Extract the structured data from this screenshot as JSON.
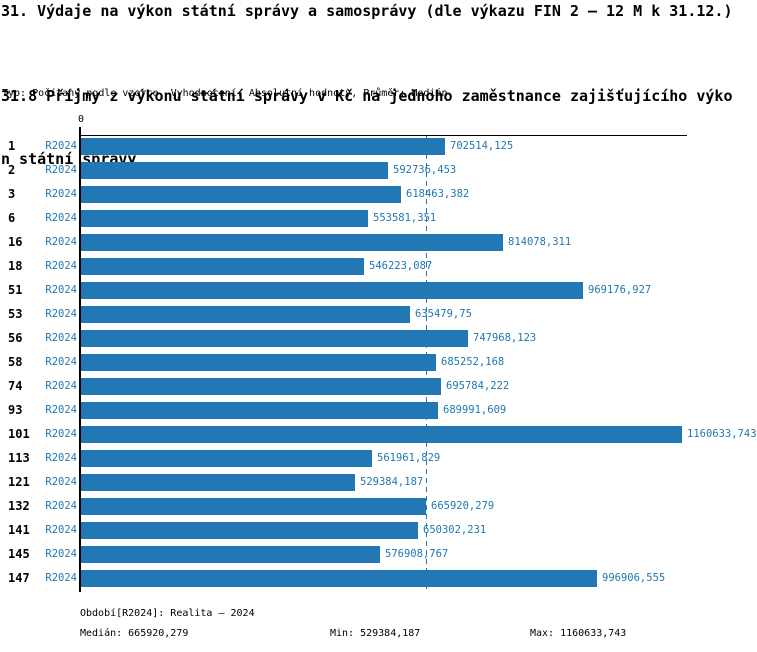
{
  "header": {
    "title": "31. Výdaje na výkon státní správy a samosprávy (dle výkazu FIN 2 – 12 M k 31.12.)",
    "subtitle_lines": [
      "31.8 Příjmy z výkonu státní správy v Kč na jednoho zaměstnance zajišťujícího výko",
      "n státní správy"
    ],
    "meta": "Typ: Počítaný podle vzorce, Vyhodnocení: Absolutní hodnoty, Průměr: Medián"
  },
  "chart_data": {
    "type": "bar",
    "orientation": "horizontal",
    "title": "31.8 Příjmy z výkonu státní správy v Kč na jednoho zaměstnance zajišťujícího výkon státní správy",
    "categories": [
      "1",
      "2",
      "3",
      "6",
      "16",
      "18",
      "51",
      "53",
      "56",
      "58",
      "74",
      "93",
      "101",
      "113",
      "121",
      "132",
      "141",
      "145",
      "147"
    ],
    "series": [
      {
        "name": "R2024",
        "values": [
          702514.125,
          592736.453,
          618463.382,
          553581.351,
          814078.311,
          546223.087,
          969176.927,
          635479.75,
          747968.123,
          685252.168,
          695784.222,
          689991.609,
          1160633.743,
          561961.829,
          529384.187,
          665920.279,
          650302.231,
          576908.767,
          996906.555
        ]
      }
    ],
    "value_labels": [
      "702514,125",
      "592736,453",
      "618463,382",
      "553581,351",
      "814078,311",
      "546223,087",
      "969176,927",
      "635479,75",
      "747968,123",
      "685252,168",
      "695784,222",
      "689991,609",
      "1160633,743",
      "561961,829",
      "529384,187",
      "665920,279",
      "650302,231",
      "576908,767",
      "996906,555"
    ],
    "series_label": "R2024",
    "xlabel": "",
    "ylabel": "",
    "xlim": [
      0,
      1176000
    ],
    "x_tick_labels": [
      "0"
    ],
    "zero_tick_label": "0",
    "grid": false,
    "legend_position": "none",
    "median_line": true,
    "median_value": 665920.279,
    "bar_color": "#2277b5",
    "value_label_color": "#1f77b4",
    "series_label_color": "#1f77b4",
    "category_label_color": "#000000",
    "axis_color": "#000000",
    "median_line_color": "#2277b5"
  },
  "footer": {
    "period": "Období[R2024]: Realita – 2024",
    "median": "Medián: 665920,279",
    "min": "Min: 529384,187",
    "max": "Max: 1160633,743"
  }
}
